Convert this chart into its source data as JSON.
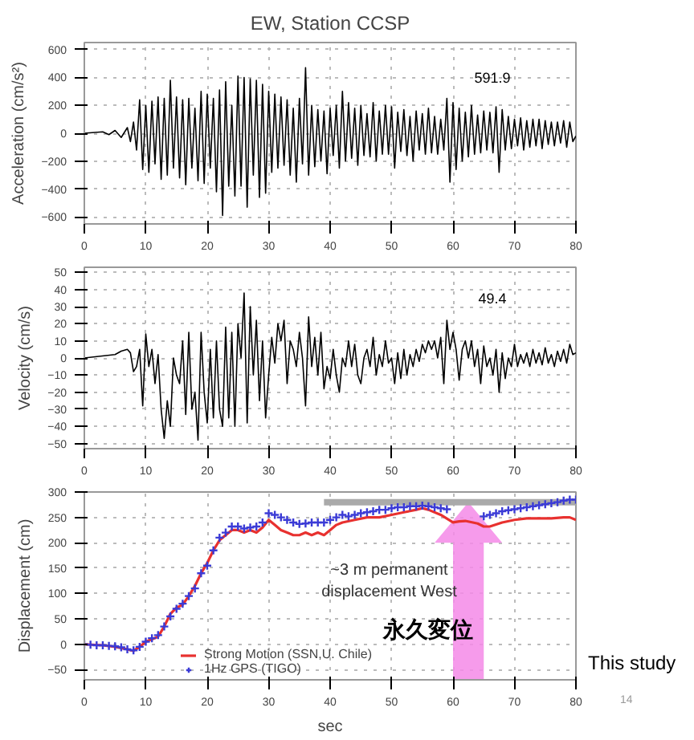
{
  "chart_data": [
    {
      "type": "line",
      "title": "EW, Station CCSP",
      "ylabel": "Acceleration (cm/s²)",
      "xlim": [
        0,
        80
      ],
      "xticks": [
        0,
        10,
        20,
        30,
        40,
        50,
        60,
        70,
        80
      ],
      "ylim": [
        -650,
        650
      ],
      "yticks": [
        -600,
        -400,
        -200,
        0,
        200,
        400,
        600
      ],
      "grid": true,
      "annotations": [
        "591.9"
      ],
      "series": [
        {
          "color": "#000000",
          "x": [
            0,
            3,
            4,
            5,
            6,
            7,
            7.5,
            8,
            8.5,
            9,
            9.5,
            10,
            10.5,
            11,
            11.5,
            12,
            12.5,
            13,
            13.5,
            14,
            14.5,
            15,
            15.5,
            16,
            16.5,
            17,
            17.5,
            18,
            18.5,
            19,
            19.5,
            20,
            20.5,
            21,
            21.5,
            22,
            22.5,
            23,
            23.5,
            24,
            24.5,
            25,
            25.5,
            26,
            26.5,
            27,
            27.5,
            28,
            28.5,
            29,
            29.5,
            30,
            30.5,
            31,
            31.5,
            32,
            32.5,
            33,
            33.5,
            34,
            34.5,
            35,
            35.5,
            36,
            36.5,
            37,
            37.5,
            38,
            38.5,
            39,
            39.5,
            40,
            40.5,
            41,
            41.5,
            42,
            42.5,
            43,
            43.5,
            44,
            44.5,
            45,
            45.5,
            46,
            46.5,
            47,
            47.5,
            48,
            48.5,
            49,
            49.5,
            50,
            50.5,
            51,
            51.5,
            52,
            52.5,
            53,
            53.5,
            54,
            54.5,
            55,
            55.5,
            56,
            56.5,
            57,
            57.5,
            58,
            58.5,
            59,
            59.5,
            60,
            60.5,
            61,
            61.5,
            62,
            62.5,
            63,
            63.5,
            64,
            64.5,
            65,
            65.5,
            66,
            66.5,
            67,
            67.5,
            68,
            68.5,
            69,
            69.5,
            70,
            70.5,
            71,
            71.5,
            72,
            72.5,
            73,
            73.5,
            74,
            74.5,
            75,
            75.5,
            76,
            76.5,
            77,
            77.5,
            78,
            78.5,
            79,
            79.5,
            80
          ],
          "values": [
            0,
            10,
            -10,
            20,
            -30,
            40,
            -60,
            80,
            -120,
            240,
            -260,
            200,
            -280,
            230,
            -220,
            260,
            -330,
            250,
            -300,
            380,
            -250,
            260,
            -320,
            240,
            -370,
            250,
            -250,
            180,
            -340,
            300,
            -360,
            280,
            -250,
            250,
            -420,
            310,
            -590,
            370,
            -380,
            200,
            -450,
            410,
            -380,
            400,
            -530,
            390,
            -300,
            380,
            -460,
            350,
            -430,
            300,
            -280,
            280,
            -250,
            260,
            -230,
            240,
            -300,
            180,
            -350,
            250,
            -220,
            470,
            -300,
            200,
            -240,
            170,
            -200,
            160,
            -290,
            180,
            -160,
            200,
            -250,
            300,
            -200,
            220,
            -180,
            180,
            -230,
            200,
            -160,
            140,
            -170,
            220,
            -200,
            160,
            -150,
            200,
            -150,
            190,
            -250,
            150,
            -130,
            170,
            -160,
            120,
            -200,
            160,
            -120,
            140,
            -150,
            180,
            -140,
            120,
            -150,
            100,
            -120,
            250,
            -350,
            220,
            -260,
            180,
            -200,
            150,
            -170,
            200,
            -150,
            130,
            -140,
            160,
            -120,
            150,
            -140,
            190,
            -280,
            170,
            -120,
            120,
            -110,
            100,
            -90,
            110,
            -120,
            90,
            -100,
            100,
            -90,
            100,
            -110,
            90,
            -80,
            80,
            -90,
            80,
            -70,
            90,
            -100,
            80,
            -60,
            -20
          ]
        }
      ]
    },
    {
      "type": "line",
      "ylabel": "Velocity (cm/s)",
      "xlim": [
        0,
        80
      ],
      "xticks": [
        0,
        10,
        20,
        30,
        40,
        50,
        60,
        70,
        80
      ],
      "ylim": [
        -53,
        53
      ],
      "yticks": [
        -50,
        -40,
        -30,
        -20,
        -10,
        0,
        10,
        20,
        30,
        40,
        50
      ],
      "grid": true,
      "annotations": [
        "49.4"
      ],
      "series": [
        {
          "color": "#000000",
          "x": [
            0,
            5,
            6,
            7,
            7.5,
            8,
            8.5,
            9,
            9.5,
            10,
            10.5,
            11,
            11.5,
            12,
            12.5,
            13,
            13.5,
            14,
            14.5,
            15,
            15.5,
            16,
            16.5,
            17,
            17.5,
            18,
            18.5,
            19,
            19.5,
            20,
            20.5,
            21,
            21.5,
            22,
            22.5,
            23,
            23.5,
            24,
            24.5,
            25,
            25.5,
            26,
            26.5,
            27,
            27.5,
            28,
            28.5,
            29,
            29.5,
            30,
            30.5,
            31,
            31.5,
            32,
            32.5,
            33,
            33.5,
            34,
            34.5,
            35,
            35.5,
            36,
            36.5,
            37,
            37.5,
            38,
            38.5,
            39,
            39.5,
            40,
            40.5,
            41,
            41.5,
            42,
            42.5,
            43,
            43.5,
            44,
            44.5,
            45,
            45.5,
            46,
            46.5,
            47,
            47.5,
            48,
            48.5,
            49,
            49.5,
            50,
            50.5,
            51,
            51.5,
            52,
            52.5,
            53,
            53.5,
            54,
            54.5,
            55,
            55.5,
            56,
            56.5,
            57,
            57.5,
            58,
            58.5,
            59,
            59.5,
            60,
            60.5,
            61,
            61.5,
            62,
            62.5,
            63,
            63.5,
            64,
            64.5,
            65,
            65.5,
            66,
            66.5,
            67,
            67.5,
            68,
            68.5,
            69,
            69.5,
            70,
            70.5,
            71,
            71.5,
            72,
            72.5,
            73,
            73.5,
            74,
            74.5,
            75,
            75.5,
            76,
            76.5,
            77,
            77.5,
            78,
            78.5,
            79,
            79.5,
            80
          ],
          "values": [
            0,
            2,
            4,
            5,
            3,
            -8,
            -5,
            5,
            -28,
            14,
            -5,
            5,
            -15,
            2,
            -30,
            -47,
            -25,
            -40,
            0,
            -10,
            -15,
            10,
            -33,
            15,
            -30,
            -20,
            -48,
            15,
            -20,
            -38,
            5,
            -35,
            10,
            -30,
            -40,
            18,
            -35,
            15,
            -40,
            20,
            0,
            38,
            -38,
            30,
            -10,
            22,
            -25,
            10,
            -35,
            -10,
            12,
            -3,
            20,
            10,
            22,
            -15,
            10,
            5,
            -5,
            15,
            0,
            -28,
            24,
            -5,
            12,
            -10,
            15,
            -18,
            -5,
            -12,
            5,
            -10,
            -20,
            0,
            -5,
            10,
            -5,
            8,
            -10,
            -15,
            0,
            5,
            -5,
            12,
            -10,
            2,
            -5,
            10,
            -3,
            0,
            -15,
            3,
            -12,
            5,
            -10,
            2,
            -5,
            5,
            -2,
            8,
            3,
            10,
            5,
            10,
            0,
            12,
            -15,
            22,
            5,
            15,
            5,
            -13,
            5,
            10,
            0,
            10,
            -5,
            5,
            -15,
            7,
            -5,
            0,
            -10,
            5,
            -20,
            3,
            -12,
            0,
            -5,
            8,
            -5,
            2,
            -3,
            3,
            -5,
            5,
            -3,
            3,
            -4,
            6,
            -3,
            2,
            -5,
            4,
            -2,
            5,
            -3,
            8,
            2,
            3
          ]
        }
      ]
    },
    {
      "type": "line",
      "ylabel": "Displacement (cm)",
      "xlabel": "sec",
      "xlim": [
        0,
        80
      ],
      "xticks": [
        0,
        10,
        20,
        30,
        40,
        50,
        60,
        70,
        80
      ],
      "ylim": [
        -70,
        300
      ],
      "yticks": [
        -50,
        0,
        50,
        100,
        150,
        200,
        250,
        300
      ],
      "grid": true,
      "legend": "bottom left",
      "annotations": [
        "~3 m permanent displacement West",
        "永久変位",
        "This study",
        "14"
      ],
      "series": [
        {
          "type": "line",
          "color": "#aaaaaa",
          "x": [
            39,
            80
          ],
          "values": [
            280,
            280
          ]
        },
        {
          "type": "line",
          "name": "Strong Motion (SSN,U. Chile)",
          "color": "#e8312f",
          "x": [
            0,
            3,
            5,
            7,
            8,
            9,
            10,
            11,
            12,
            13,
            14,
            15,
            16,
            17,
            18,
            19,
            20,
            21,
            22,
            23,
            24,
            25,
            26,
            27,
            28,
            29,
            30,
            31,
            32,
            33,
            34,
            35,
            36,
            37,
            38,
            39,
            40,
            41,
            42,
            44,
            46,
            48,
            50,
            52,
            54,
            55,
            56,
            58,
            60,
            61,
            62,
            64,
            65,
            66,
            68,
            70,
            72,
            74,
            76,
            78,
            79,
            80
          ],
          "values": [
            0,
            -2,
            -5,
            -10,
            -13,
            -5,
            5,
            10,
            15,
            35,
            60,
            72,
            78,
            95,
            115,
            140,
            160,
            185,
            205,
            215,
            225,
            225,
            220,
            225,
            220,
            230,
            245,
            235,
            225,
            220,
            215,
            215,
            220,
            215,
            220,
            215,
            225,
            235,
            240,
            245,
            250,
            250,
            255,
            260,
            265,
            268,
            265,
            255,
            240,
            242,
            243,
            238,
            232,
            232,
            240,
            245,
            248,
            248,
            248,
            250,
            250,
            245
          ]
        },
        {
          "type": "scatter",
          "marker": "cross",
          "name": "1Hz GPS (TIGO)",
          "color": "#3b3bd6",
          "x": [
            0,
            1,
            2,
            3,
            4,
            5,
            6,
            7,
            8,
            9,
            10,
            11,
            12,
            13,
            14,
            15,
            16,
            17,
            18,
            19,
            20,
            21,
            22,
            23,
            24,
            25,
            26,
            27,
            28,
            29,
            30,
            31,
            32,
            33,
            34,
            35,
            36,
            37,
            38,
            39,
            40,
            41,
            42,
            43,
            44,
            45,
            46,
            47,
            48,
            49,
            50,
            51,
            52,
            53,
            54,
            55,
            56,
            57,
            58,
            59,
            65,
            66,
            67,
            68,
            69,
            70,
            71,
            72,
            73,
            74,
            75,
            76,
            77,
            78,
            79,
            80
          ],
          "values": [
            0,
            -1,
            -2,
            -2,
            -3,
            -4,
            -6,
            -10,
            -12,
            -5,
            5,
            12,
            18,
            35,
            55,
            70,
            80,
            95,
            110,
            140,
            155,
            185,
            210,
            220,
            232,
            232,
            228,
            230,
            232,
            240,
            258,
            255,
            250,
            245,
            240,
            237,
            238,
            240,
            240,
            240,
            245,
            250,
            255,
            252,
            255,
            258,
            260,
            262,
            265,
            265,
            268,
            270,
            270,
            272,
            272,
            273,
            272,
            270,
            268,
            266,
            252,
            255,
            258,
            262,
            264,
            266,
            268,
            270,
            272,
            274,
            276,
            278,
            280,
            283,
            285,
            285
          ]
        }
      ]
    }
  ]
}
